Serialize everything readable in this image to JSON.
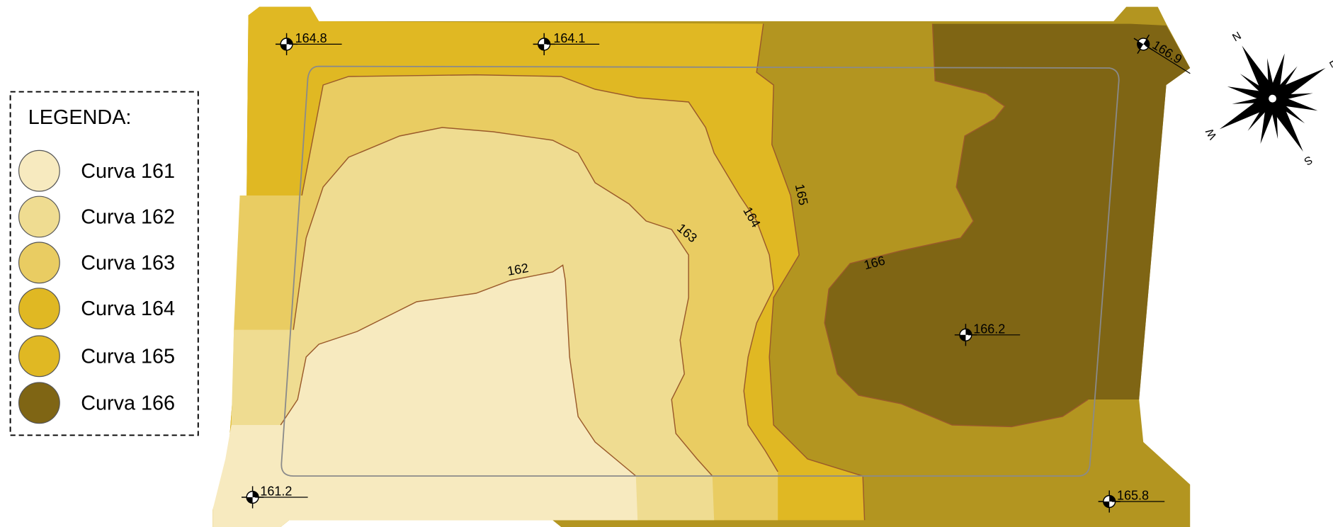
{
  "legend": {
    "title": "LEGENDA:",
    "items": [
      {
        "label": "Curva 161",
        "color": "#f7eabf"
      },
      {
        "label": "Curva 162",
        "color": "#efdc91"
      },
      {
        "label": "Curva 163",
        "color": "#e9cc62"
      },
      {
        "label": "Curva 164",
        "color": "#e0b823"
      },
      {
        "label": "Curva 165",
        "color": "#e0b823"
      },
      {
        "label": "Curva 166",
        "color": "#7f6514"
      }
    ]
  },
  "spot_elevations": [
    "164.8",
    "164.1",
    "166.9",
    "166.2",
    "161.2",
    "165.8"
  ],
  "contour_labels": [
    "162",
    "163",
    "164",
    "165",
    "166"
  ],
  "compass": [
    "N",
    "E",
    "S",
    "W"
  ]
}
